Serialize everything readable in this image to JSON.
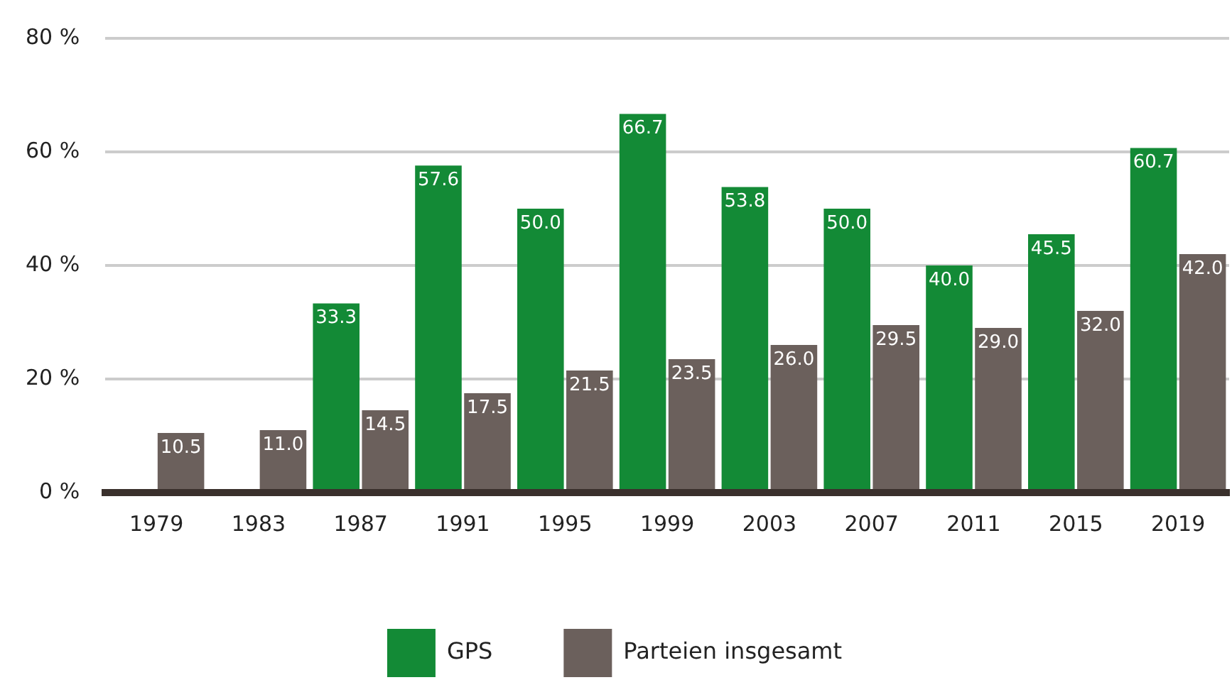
{
  "chart_data": {
    "type": "bar",
    "categories": [
      "1979",
      "1983",
      "1987",
      "1991",
      "1995",
      "1999",
      "2003",
      "2007",
      "2011",
      "2015",
      "2019"
    ],
    "series": [
      {
        "name": "GPS",
        "color": "#138a36",
        "values": [
          null,
          null,
          33.3,
          57.6,
          50.0,
          66.7,
          53.8,
          50.0,
          40.0,
          45.5,
          60.7
        ],
        "value_labels": [
          null,
          null,
          "33.3",
          "57.6",
          "50.0",
          "66.7",
          "53.8",
          "50.0",
          "40.0",
          "45.5",
          "60.7"
        ]
      },
      {
        "name": "Parteien insgesamt",
        "color": "#6b605c",
        "values": [
          10.5,
          11.0,
          14.5,
          17.5,
          21.5,
          23.5,
          26.0,
          29.5,
          29.0,
          32.0,
          42.0
        ],
        "value_labels": [
          "10.5",
          "11.0",
          "14.5",
          "17.5",
          "21.5",
          "23.5",
          "26.0",
          "29.5",
          "29.0",
          "32.0",
          "42.0"
        ]
      }
    ],
    "ylim": [
      0,
      80
    ],
    "yticks": [
      {
        "value": 0,
        "label": "0 %"
      },
      {
        "value": 20,
        "label": "20 %"
      },
      {
        "value": 40,
        "label": "40 %"
      },
      {
        "value": 60,
        "label": "60 %"
      },
      {
        "value": 80,
        "label": "80 %"
      }
    ],
    "grid": "y",
    "legend": "bottom"
  }
}
